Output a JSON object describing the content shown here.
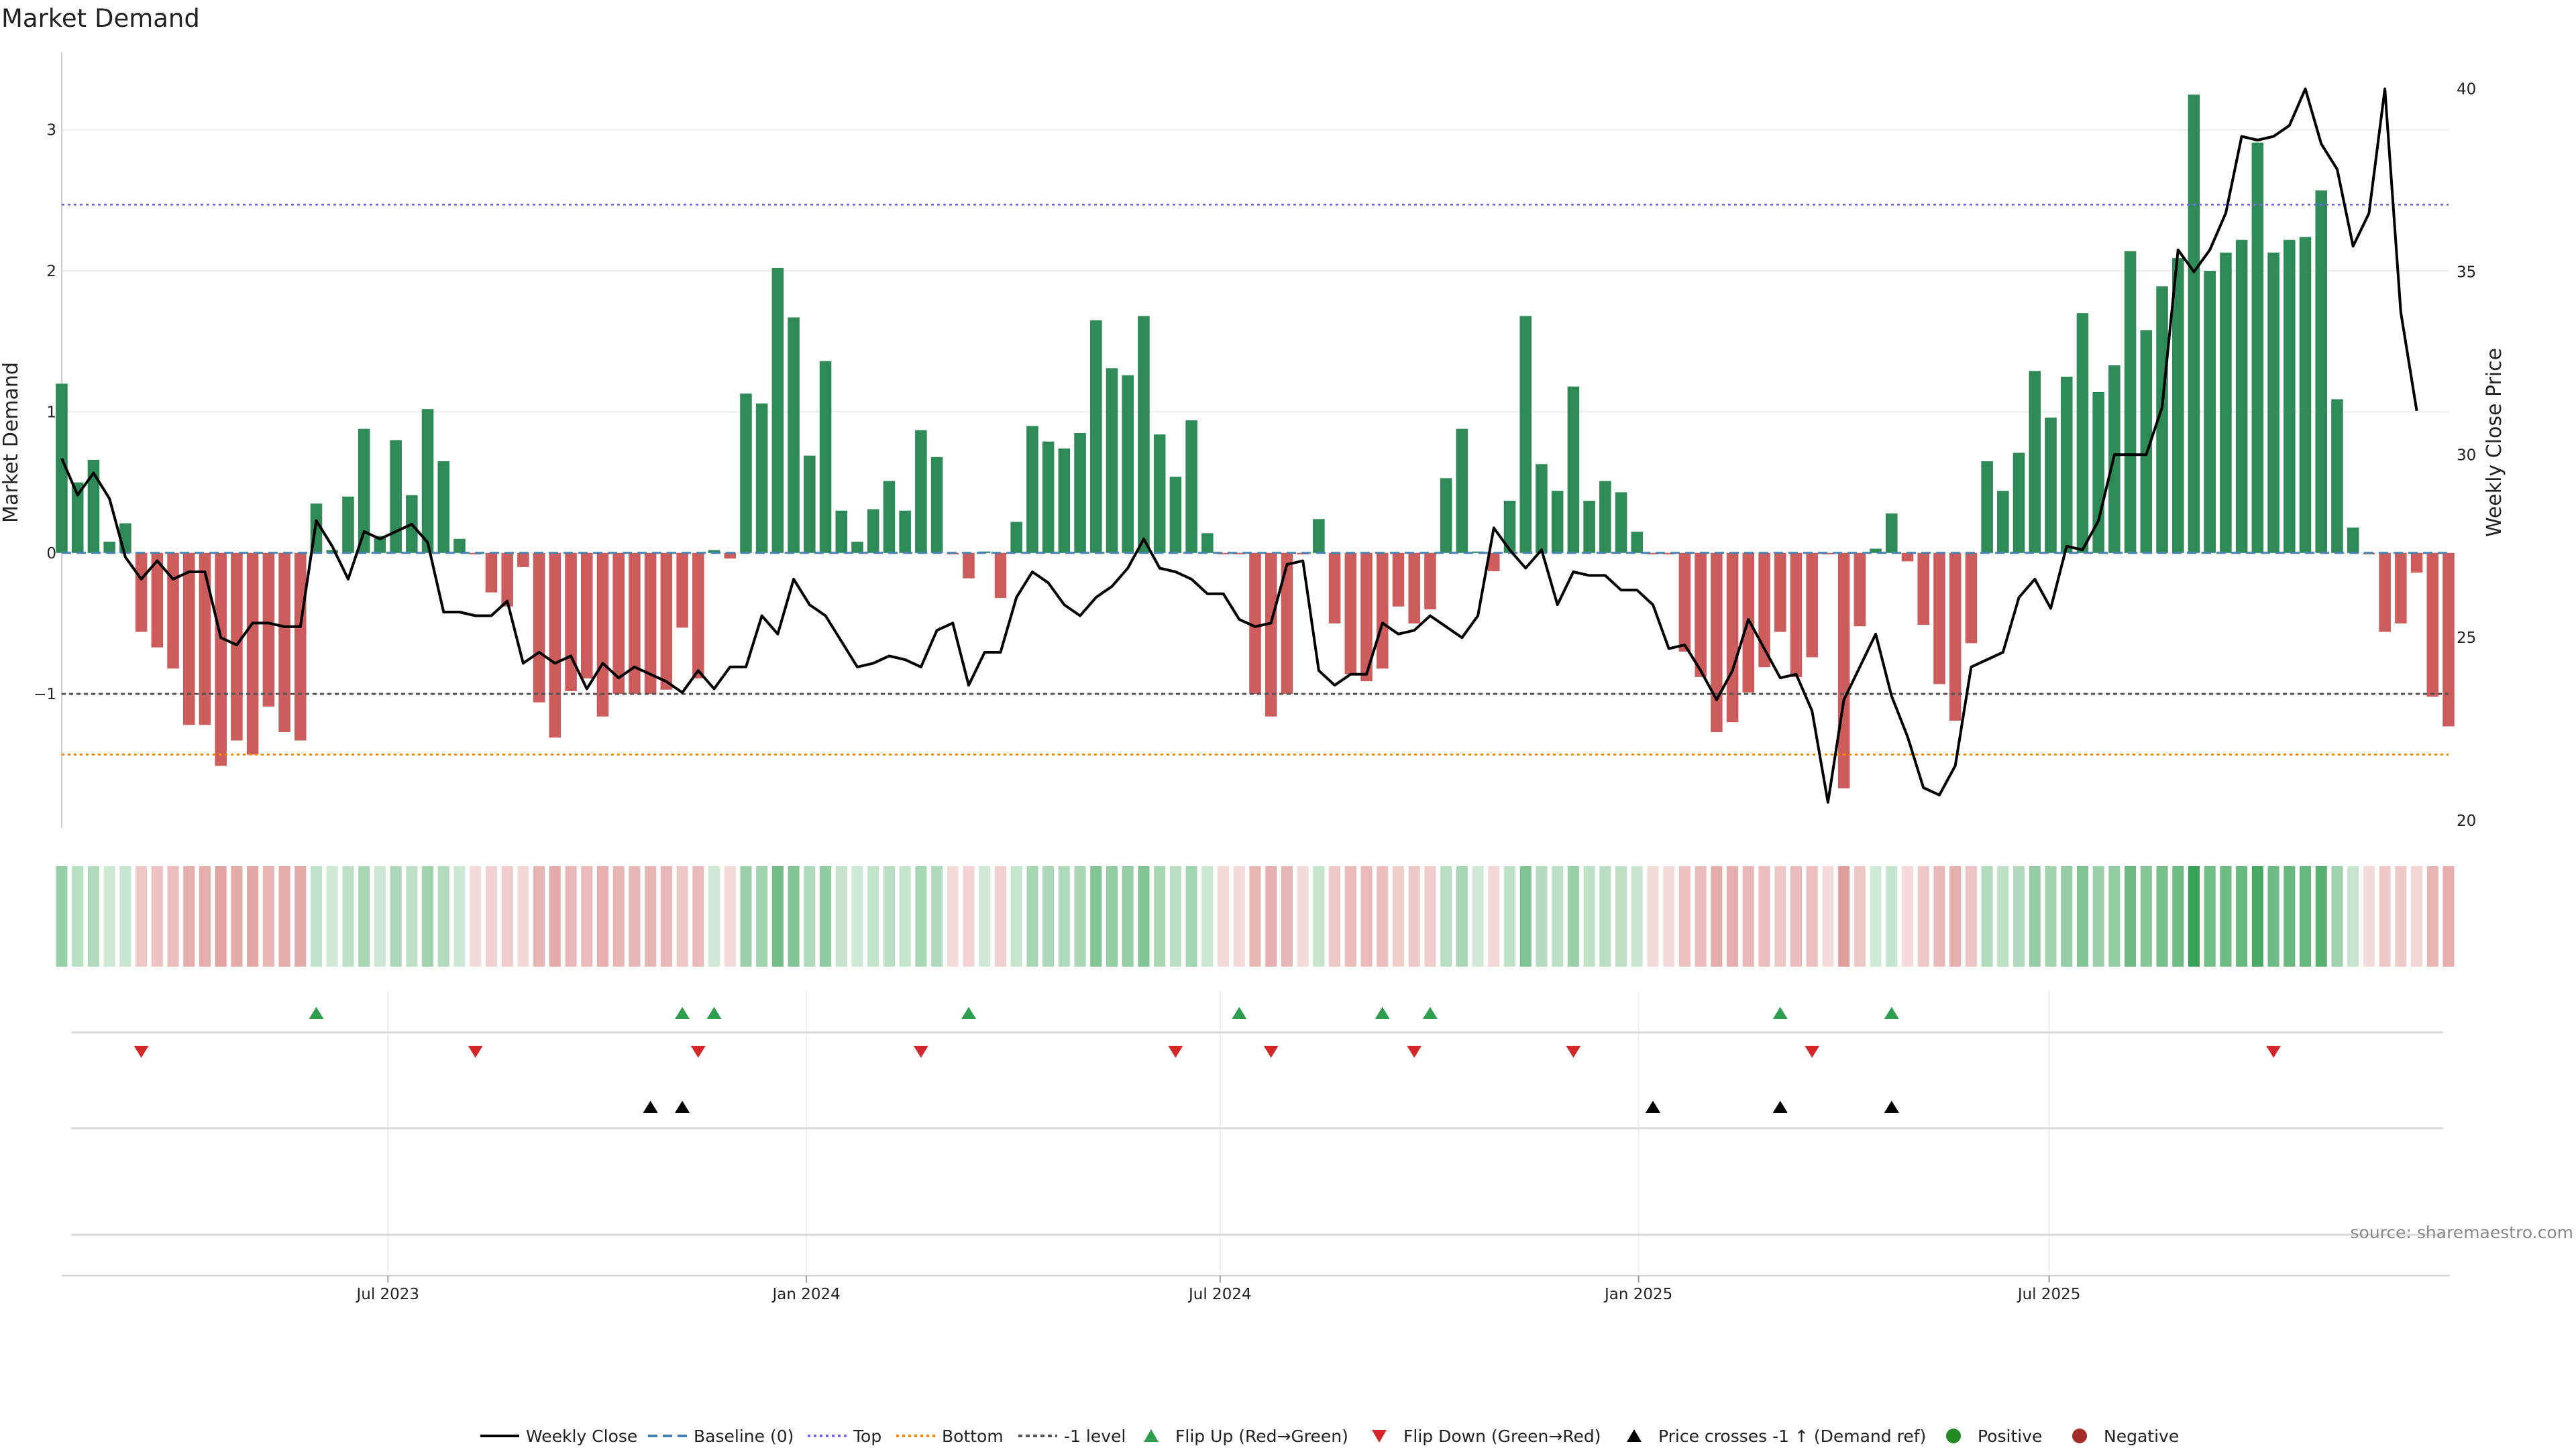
{
  "chart_data": {
    "type": "bar",
    "title": "Market Demand",
    "ylabel": "Market Demand",
    "y2label": "Weekly Close Price",
    "ylim": [
      -1.95,
      3.55
    ],
    "y2lim": [
      19.8,
      41.0
    ],
    "yticks": [
      -1,
      0,
      1,
      2,
      3
    ],
    "y2ticks": [
      20,
      25,
      30,
      35,
      40
    ],
    "xtick_labels": [
      "Jul 2023",
      "Jan 2024",
      "Jul 2024",
      "Jan 2025",
      "Jul 2025"
    ],
    "xtick_weeks": [
      20.5,
      46.8,
      72.8,
      99.1,
      124.9
    ],
    "reference_levels": {
      "top": 2.47,
      "bottom": -1.43,
      "minus_one": -1.0,
      "baseline": 0
    },
    "demand": [
      1.2,
      0.5,
      0.66,
      0.08,
      0.21,
      -0.56,
      -0.67,
      -0.82,
      -1.22,
      -1.22,
      -1.51,
      -1.33,
      -1.43,
      -1.09,
      -1.27,
      -1.33,
      0.35,
      0.02,
      0.4,
      0.88,
      0.12,
      0.8,
      0.41,
      1.02,
      0.65,
      0.1,
      -0.01,
      -0.28,
      -0.38,
      -0.1,
      -1.06,
      -1.31,
      -0.98,
      -0.89,
      -1.16,
      -1.0,
      -1.0,
      -1.0,
      -0.97,
      -0.53,
      -0.89,
      0.02,
      -0.04,
      1.13,
      1.06,
      2.02,
      1.67,
      0.69,
      1.36,
      0.3,
      0.08,
      0.31,
      0.51,
      0.3,
      0.87,
      0.68,
      -0.01,
      -0.18,
      0.01,
      -0.32,
      0.22,
      0.9,
      0.79,
      0.74,
      0.85,
      1.65,
      1.31,
      1.26,
      1.68,
      0.84,
      0.54,
      0.94,
      0.14,
      -0.01,
      -0.01,
      -1.0,
      -1.16,
      -1.0,
      -0.01,
      0.24,
      -0.5,
      -0.86,
      -0.91,
      -0.82,
      -0.38,
      -0.5,
      -0.4,
      0.53,
      0.88,
      0.01,
      -0.13,
      0.37,
      1.68,
      0.63,
      0.44,
      1.18,
      0.37,
      0.51,
      0.43,
      0.15,
      -0.01,
      -0.01,
      -0.7,
      -0.88,
      -1.27,
      -1.2,
      -0.99,
      -0.81,
      -0.56,
      -0.88,
      -0.74,
      -0.01,
      -1.67,
      -0.52,
      0.03,
      0.28,
      -0.06,
      -0.51,
      -0.93,
      -1.19,
      -0.64,
      0.65,
      0.44,
      0.71,
      1.29,
      0.96,
      1.25,
      1.7,
      1.14,
      1.33,
      2.14,
      1.58,
      1.89,
      2.09,
      3.25,
      2.0,
      2.13,
      2.22,
      2.91,
      2.13,
      2.22,
      2.24,
      2.57,
      1.09,
      0.18,
      -0.01,
      -0.56,
      -0.5,
      -0.14,
      -1.02,
      -1.23
    ],
    "price": [
      29.9,
      28.9,
      29.5,
      28.8,
      27.2,
      26.6,
      27.1,
      26.6,
      26.8,
      26.8,
      25.0,
      24.8,
      25.4,
      25.4,
      25.3,
      25.3,
      28.2,
      27.5,
      26.6,
      27.9,
      27.7,
      27.9,
      28.1,
      27.6,
      25.7,
      25.7,
      25.6,
      25.6,
      26.0,
      24.3,
      24.6,
      24.3,
      24.5,
      23.6,
      24.3,
      23.9,
      24.2,
      24.0,
      23.8,
      23.5,
      24.1,
      23.6,
      24.2,
      24.2,
      25.6,
      25.1,
      26.6,
      25.9,
      25.6,
      24.9,
      24.2,
      24.3,
      24.5,
      24.4,
      24.2,
      25.2,
      25.4,
      23.7,
      24.6,
      24.6,
      26.1,
      26.8,
      26.5,
      25.9,
      25.6,
      26.1,
      26.4,
      26.9,
      27.7,
      26.9,
      26.8,
      26.6,
      26.2,
      26.2,
      25.5,
      25.3,
      25.4,
      27.0,
      27.1,
      24.1,
      23.7,
      24.0,
      24.0,
      25.4,
      25.1,
      25.2,
      25.6,
      25.3,
      25.0,
      25.6,
      28.0,
      27.4,
      26.9,
      27.4,
      25.9,
      26.8,
      26.7,
      26.7,
      26.3,
      26.3,
      25.9,
      24.7,
      24.8,
      24.1,
      23.3,
      24.1,
      25.5,
      24.7,
      23.9,
      24.0,
      23.0,
      20.5,
      23.3,
      24.2,
      25.1,
      23.4,
      22.3,
      20.9,
      20.7,
      21.5,
      24.2,
      24.4,
      24.6,
      26.1,
      26.6,
      25.8,
      27.5,
      27.4,
      28.2,
      30.0,
      30.0,
      30.0,
      31.3,
      35.6,
      35.0,
      35.6,
      36.6,
      38.7,
      38.6,
      38.7,
      39.0,
      40.0,
      38.5,
      37.8,
      35.7,
      36.6,
      40.0,
      33.9,
      31.2
    ],
    "flip_up_weeks": [
      16,
      39,
      41,
      57,
      74,
      83,
      86,
      108,
      115
    ],
    "flip_down_weeks": [
      5,
      26,
      40,
      54,
      70,
      76,
      85,
      95,
      110,
      139
    ],
    "price_cross_weeks": [
      37,
      39,
      100,
      108,
      115
    ],
    "legend": [
      "Weekly Close",
      "Baseline (0)",
      "Top",
      "Bottom",
      "-1 level",
      "Flip Up (Red→Green)",
      "Flip Down (Green→Red)",
      "Price crosses -1 ↑ (Demand ref)",
      "Positive",
      "Negative"
    ],
    "source": "source: sharemaestro.com"
  },
  "colors": {
    "positive": "#2e8b57",
    "negative": "#cd5c5c",
    "price_line": "#000000",
    "baseline": "#4682b4",
    "top": "#7b68ee",
    "bottom": "#ff8c00",
    "minus_one": "#555555",
    "flip_up": "#2e9e4e",
    "flip_down": "#d62728",
    "cross_marker": "#000000",
    "legend_positive_dot": "#228b22",
    "legend_negative_dot": "#a52a2a"
  }
}
